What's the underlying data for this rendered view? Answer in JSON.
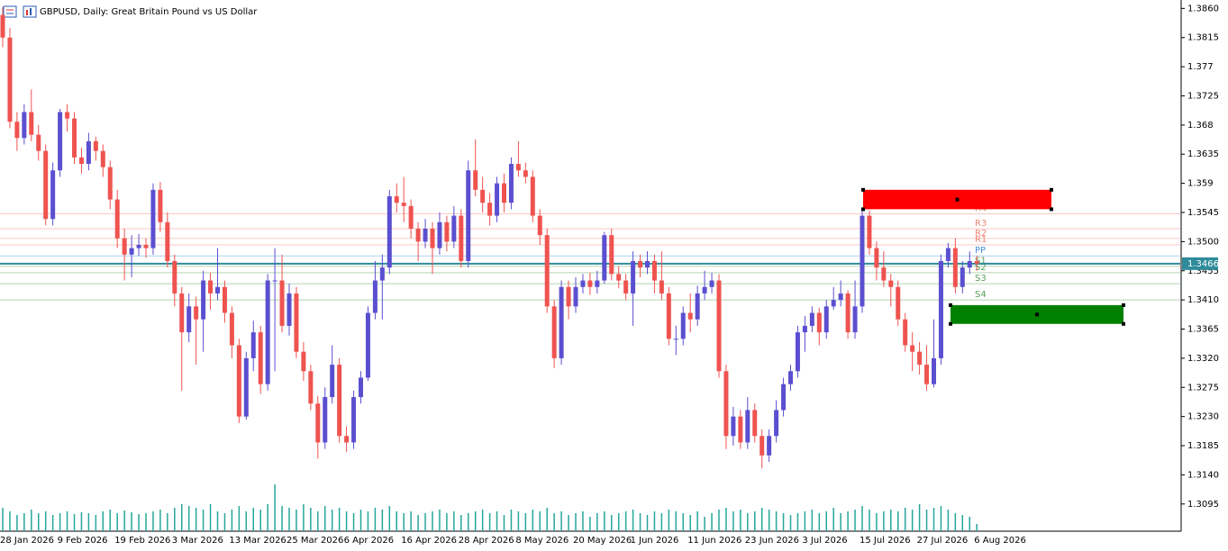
{
  "chart_data": {
    "type": "candlestick",
    "title": "GBPUSD, Daily:  Great Britain Pound vs US Dollar",
    "categories": [
      "28 Jan 2026",
      null,
      null,
      null,
      null,
      null,
      null,
      null,
      "9 Feb 2026",
      null,
      null,
      null,
      null,
      null,
      null,
      null,
      "19 Feb 2026",
      null,
      null,
      null,
      null,
      null,
      null,
      null,
      "3 Mar 2026",
      null,
      null,
      null,
      null,
      null,
      null,
      null,
      "13 Mar 2026",
      null,
      null,
      null,
      null,
      null,
      null,
      null,
      "25 Mar 2026",
      null,
      null,
      null,
      null,
      null,
      null,
      null,
      "6 Apr 2026",
      null,
      null,
      null,
      null,
      null,
      null,
      null,
      "16 Apr 2026",
      null,
      null,
      null,
      null,
      null,
      null,
      null,
      "28 Apr 2026",
      null,
      null,
      null,
      null,
      null,
      null,
      null,
      "8 May 2026",
      null,
      null,
      null,
      null,
      null,
      null,
      null,
      "20 May 2026",
      null,
      null,
      null,
      null,
      null,
      null,
      null,
      "1 Jun 2026",
      null,
      null,
      null,
      null,
      null,
      null,
      null,
      "11 Jun 2026",
      null,
      null,
      null,
      null,
      null,
      null,
      null,
      "23 Jun 2026",
      null,
      null,
      null,
      null,
      null,
      null,
      null,
      "3 Jul 2026",
      null,
      null,
      null,
      null,
      null,
      null,
      null,
      "15 Jul 2026",
      null,
      null,
      null,
      null,
      null,
      null,
      null,
      "27 Jul 2026",
      null,
      null,
      null,
      null,
      null,
      null,
      null,
      "6 Aug 2026"
    ],
    "open": [
      1.385,
      1.3815,
      1.3685,
      1.366,
      1.37,
      1.3665,
      1.364,
      1.3535,
      1.361,
      1.37,
      1.369,
      1.363,
      1.362,
      1.3655,
      1.364,
      1.3615,
      1.3565,
      1.3505,
      1.348,
      1.349,
      1.3495,
      1.349,
      1.358,
      1.353,
      1.347,
      1.342,
      1.336,
      1.34,
      1.338,
      1.344,
      1.342,
      1.343,
      1.339,
      1.334,
      1.323,
      1.332,
      1.336,
      1.328,
      1.344,
      1.344,
      1.337,
      1.342,
      1.333,
      1.33,
      1.325,
      1.319,
      1.326,
      1.331,
      1.32,
      1.319,
      1.326,
      1.329,
      1.339,
      1.344,
      1.346,
      1.357,
      1.356,
      1.3555,
      1.352,
      1.35,
      1.352,
      1.349,
      1.353,
      1.35,
      1.354,
      1.347,
      1.361,
      1.358,
      1.356,
      1.354,
      1.359,
      1.356,
      1.362,
      1.361,
      1.36,
      1.354,
      1.351,
      1.34,
      1.332,
      1.343,
      1.34,
      1.343,
      1.344,
      1.343,
      1.344,
      1.351,
      1.345,
      1.344,
      1.342,
      1.347,
      1.346,
      1.347,
      1.344,
      1.342,
      1.335,
      1.335,
      1.339,
      1.338,
      1.342,
      1.343,
      1.344,
      1.33,
      1.32,
      1.323,
      1.319,
      1.324,
      1.32,
      1.317,
      1.32,
      1.324,
      1.328,
      1.33,
      1.336,
      1.337,
      1.339,
      1.336,
      1.34,
      1.341,
      1.342,
      1.336,
      1.34,
      1.354,
      1.349,
      1.346,
      1.344,
      1.343,
      1.338,
      1.334,
      1.333,
      1.331,
      1.328,
      1.332,
      1.347,
      1.349,
      1.343,
      1.346,
      1.347
    ],
    "high": [
      1.3862,
      1.383,
      1.37,
      1.3712,
      1.3735,
      1.368,
      1.365,
      1.3622,
      1.3705,
      1.3712,
      1.37,
      1.3645,
      1.3668,
      1.3662,
      1.365,
      1.3625,
      1.358,
      1.352,
      1.351,
      1.3512,
      1.3505,
      1.359,
      1.3592,
      1.3545,
      1.348,
      1.343,
      1.342,
      1.3415,
      1.3455,
      1.3452,
      1.349,
      1.344,
      1.34,
      1.335,
      1.333,
      1.3378,
      1.337,
      1.345,
      1.349,
      1.348,
      1.3435,
      1.343,
      1.3345,
      1.331,
      1.3262,
      1.3275,
      1.334,
      1.332,
      1.3215,
      1.327,
      1.33,
      1.34,
      1.347,
      1.348,
      1.358,
      1.359,
      1.36,
      1.3565,
      1.353,
      1.3535,
      1.353,
      1.3545,
      1.354,
      1.3555,
      1.355,
      1.3625,
      1.3658,
      1.36,
      1.3575,
      1.36,
      1.3605,
      1.363,
      1.3655,
      1.3622,
      1.361,
      1.355,
      1.352,
      1.341,
      1.344,
      1.344,
      1.3445,
      1.345,
      1.3452,
      1.3455,
      1.3515,
      1.352,
      1.3462,
      1.345,
      1.3485,
      1.348,
      1.3485,
      1.348,
      1.3485,
      1.343,
      1.337,
      1.34,
      1.342,
      1.3432,
      1.3455,
      1.3452,
      1.345,
      1.331,
      1.3245,
      1.324,
      1.326,
      1.325,
      1.321,
      1.321,
      1.3255,
      1.329,
      1.331,
      1.337,
      1.3385,
      1.34,
      1.3398,
      1.341,
      1.343,
      1.344,
      1.3425,
      1.344,
      1.355,
      1.3548,
      1.35,
      1.3485,
      1.345,
      1.344,
      1.339,
      1.336,
      1.3345,
      1.334,
      1.338,
      1.348,
      1.3498,
      1.3505,
      1.347,
      1.3485,
      1.3478
    ],
    "low": [
      1.38,
      1.3675,
      1.364,
      1.365,
      1.3655,
      1.3625,
      1.3525,
      1.3525,
      1.36,
      1.367,
      1.362,
      1.3605,
      1.361,
      1.3625,
      1.36,
      1.355,
      1.349,
      1.344,
      1.3445,
      1.3478,
      1.3475,
      1.348,
      1.3515,
      1.346,
      1.34,
      1.327,
      1.3345,
      1.331,
      1.333,
      1.3395,
      1.341,
      1.3375,
      1.332,
      1.322,
      1.3225,
      1.33,
      1.3265,
      1.327,
      1.33,
      1.336,
      1.3355,
      1.332,
      1.3285,
      1.324,
      1.3165,
      1.318,
      1.325,
      1.319,
      1.3175,
      1.318,
      1.325,
      1.3285,
      1.338,
      1.338,
      1.345,
      1.3545,
      1.353,
      1.3505,
      1.347,
      1.349,
      1.345,
      1.348,
      1.3485,
      1.349,
      1.346,
      1.346,
      1.357,
      1.3545,
      1.3525,
      1.353,
      1.3545,
      1.355,
      1.36,
      1.359,
      1.353,
      1.3495,
      1.339,
      1.3305,
      1.331,
      1.338,
      1.339,
      1.342,
      1.3418,
      1.342,
      1.3435,
      1.344,
      1.3428,
      1.341,
      1.337,
      1.3445,
      1.345,
      1.342,
      1.341,
      1.334,
      1.3325,
      1.334,
      1.336,
      1.337,
      1.341,
      1.342,
      1.329,
      1.318,
      1.3185,
      1.318,
      1.318,
      1.319,
      1.315,
      1.316,
      1.319,
      1.323,
      1.327,
      1.329,
      1.333,
      1.336,
      1.334,
      1.335,
      1.3395,
      1.34,
      1.335,
      1.335,
      1.339,
      1.348,
      1.344,
      1.343,
      1.34,
      1.337,
      1.333,
      1.33,
      1.3295,
      1.327,
      1.3275,
      1.331,
      1.346,
      1.342,
      1.342,
      1.345,
      1.3455
    ],
    "close": [
      1.3815,
      1.3685,
      1.366,
      1.37,
      1.3665,
      1.364,
      1.3535,
      1.361,
      1.37,
      1.369,
      1.363,
      1.362,
      1.3655,
      1.364,
      1.3615,
      1.3565,
      1.3505,
      1.348,
      1.349,
      1.3495,
      1.349,
      1.358,
      1.353,
      1.347,
      1.342,
      1.336,
      1.34,
      1.338,
      1.344,
      1.342,
      1.343,
      1.339,
      1.334,
      1.323,
      1.332,
      1.336,
      1.328,
      1.344,
      1.344,
      1.337,
      1.342,
      1.333,
      1.33,
      1.325,
      1.319,
      1.326,
      1.331,
      1.32,
      1.319,
      1.326,
      1.329,
      1.339,
      1.344,
      1.346,
      1.357,
      1.356,
      1.3555,
      1.352,
      1.35,
      1.352,
      1.349,
      1.353,
      1.35,
      1.354,
      1.347,
      1.361,
      1.358,
      1.356,
      1.354,
      1.359,
      1.356,
      1.362,
      1.361,
      1.36,
      1.354,
      1.351,
      1.34,
      1.332,
      1.343,
      1.34,
      1.343,
      1.344,
      1.343,
      1.344,
      1.351,
      1.345,
      1.344,
      1.342,
      1.347,
      1.346,
      1.347,
      1.344,
      1.342,
      1.335,
      1.335,
      1.339,
      1.338,
      1.342,
      1.343,
      1.344,
      1.33,
      1.32,
      1.323,
      1.319,
      1.324,
      1.32,
      1.317,
      1.32,
      1.324,
      1.328,
      1.33,
      1.336,
      1.337,
      1.339,
      1.336,
      1.34,
      1.341,
      1.342,
      1.336,
      1.34,
      1.354,
      1.349,
      1.346,
      1.344,
      1.343,
      1.338,
      1.334,
      1.333,
      1.331,
      1.328,
      1.332,
      1.347,
      1.349,
      1.343,
      1.346,
      1.347,
      1.3466
    ],
    "volume": [
      26,
      22,
      18,
      20,
      24,
      20,
      22,
      18,
      20,
      22,
      19,
      21,
      20,
      18,
      22,
      24,
      20,
      23,
      21,
      19,
      20,
      22,
      24,
      20,
      26,
      30,
      28,
      26,
      24,
      30,
      22,
      20,
      24,
      28,
      22,
      26,
      24,
      30,
      52,
      28,
      26,
      24,
      30,
      26,
      22,
      28,
      24,
      26,
      22,
      20,
      24,
      22,
      26,
      24,
      28,
      22,
      20,
      22,
      18,
      20,
      22,
      24,
      20,
      22,
      18,
      20,
      22,
      24,
      20,
      22,
      18,
      24,
      22,
      20,
      24,
      22,
      26,
      20,
      22,
      18,
      20,
      22,
      16,
      20,
      22,
      18,
      20,
      22,
      24,
      20,
      18,
      22,
      20,
      24,
      22,
      20,
      18,
      22,
      16,
      20,
      24,
      26,
      22,
      24,
      20,
      22,
      26,
      24,
      22,
      20,
      18,
      20,
      22,
      24,
      20,
      22,
      26,
      20,
      22,
      24,
      28,
      24,
      20,
      22,
      24,
      22,
      26,
      24,
      30,
      24,
      26,
      28,
      24,
      20,
      18,
      16,
      8
    ],
    "up_color": "#5b4fd0",
    "down_color": "#ef5350",
    "volume_color": "#26a69a",
    "ylim": [
      1.3053,
      1.3873
    ],
    "yticks": [
      {
        "value": 1.386,
        "label": "1.3860"
      },
      1.3815,
      1.377,
      1.3725,
      1.368,
      1.3635,
      1.359,
      1.3545,
      {
        "value": 1.35,
        "label": "1.3500"
      },
      1.3455,
      {
        "value": 1.341,
        "label": "1.3410"
      },
      1.3365,
      {
        "value": 1.332,
        "label": "1.3320"
      },
      1.3275,
      {
        "value": 1.323,
        "label": "1.3230"
      },
      1.3185,
      {
        "value": 1.314,
        "label": "1.3140"
      },
      1.3095
    ],
    "last_price": 1.3466,
    "last_price_color": "#2e8b9a",
    "pivots": [
      {
        "name": "R4",
        "value": 1.3543,
        "color": "#f08a7a"
      },
      {
        "name": "R3",
        "value": 1.352,
        "color": "#f08a7a"
      },
      {
        "name": "R2",
        "value": 1.3505,
        "color": "#f08a7a"
      },
      {
        "name": "R1",
        "value": 1.3495,
        "color": "#f08a7a"
      },
      {
        "name": "PP",
        "value": 1.3478,
        "color": "#4a90d9"
      },
      {
        "name": "S1",
        "value": 1.3462,
        "color": "#5aa05a"
      },
      {
        "name": "S2",
        "value": 1.3452,
        "color": "#5aa05a"
      },
      {
        "name": "S3",
        "value": 1.3435,
        "color": "#5aa05a"
      },
      {
        "name": "S4",
        "value": 1.341,
        "color": "#5aa05a"
      }
    ],
    "zones": [
      {
        "top": 1.358,
        "bottom": 1.355,
        "color": "#ff0000"
      },
      {
        "top": 1.3402,
        "bottom": 1.3373,
        "color": "#008000"
      }
    ]
  }
}
